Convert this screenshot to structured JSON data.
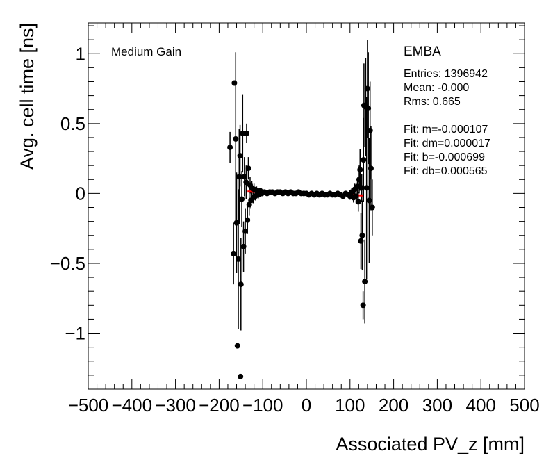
{
  "chart_data": {
    "type": "scatter",
    "title": "",
    "xlabel": "Associated PV_z [mm]",
    "ylabel": "Avg. cell time [ns]",
    "xlim": [
      -500,
      500
    ],
    "ylim": [
      -1.4,
      1.22
    ],
    "x_ticks": [
      -500,
      -400,
      -300,
      -200,
      -100,
      0,
      100,
      200,
      300,
      400,
      500
    ],
    "x_tick_labels": [
      "−500",
      "−400",
      "−300",
      "−200",
      "−100",
      "0",
      "100",
      "200",
      "300",
      "400",
      "500"
    ],
    "y_ticks": [
      -1,
      -0.5,
      0,
      0.5,
      1
    ],
    "y_tick_labels": [
      "−1",
      "−0.5",
      "0",
      "0.5",
      "1"
    ],
    "grid": false,
    "gain_label": "Medium Gain",
    "stats": {
      "title": "EMBA",
      "lines": [
        "Entries: 1396942",
        "Mean: -0.000",
        "Rms: 0.665",
        "",
        "Fit: m=-0.000107",
        "Fit: dm=0.000017",
        "Fit: b=-0.000699",
        "Fit: db=0.000565"
      ]
    },
    "series": [
      {
        "points": [
          {
            "x": -175,
            "y": 0.33,
            "err": 0.11
          },
          {
            "x": -167,
            "y": -0.43,
            "err": 0.22
          },
          {
            "x": -165,
            "y": 0.79,
            "err": 0.0
          },
          {
            "x": -162,
            "y": 0.39,
            "err": 0.62
          },
          {
            "x": -160,
            "y": -0.21,
            "err": 0.36
          },
          {
            "x": -158,
            "y": -1.09,
            "err": 0.0
          },
          {
            "x": -156,
            "y": -0.47,
            "err": 0.5
          },
          {
            "x": -154,
            "y": 0.12,
            "err": 0.34
          },
          {
            "x": -152,
            "y": 0.27,
            "err": 0.22
          },
          {
            "x": -151,
            "y": -1.31,
            "err": 0.0
          },
          {
            "x": -150,
            "y": -0.65,
            "err": 0.33
          },
          {
            "x": -148,
            "y": -0.04,
            "err": 0.2
          },
          {
            "x": -146,
            "y": 0.43,
            "err": 0.28
          },
          {
            "x": -144,
            "y": -0.38,
            "err": 0.18
          },
          {
            "x": -142,
            "y": 0.12,
            "err": 0.14
          },
          {
            "x": -140,
            "y": -0.27,
            "err": 0.16
          },
          {
            "x": -138,
            "y": 0.08,
            "err": 0.12
          },
          {
            "x": -137,
            "y": 0.43,
            "err": 0.07
          },
          {
            "x": -135,
            "y": -0.19,
            "err": 0.1
          },
          {
            "x": -133,
            "y": 0.18,
            "err": 0.08
          },
          {
            "x": -131,
            "y": -0.08,
            "err": 0.08
          },
          {
            "x": -129,
            "y": 0.06,
            "err": 0.06
          },
          {
            "x": -127,
            "y": -0.05,
            "err": 0.06
          },
          {
            "x": -125,
            "y": 0.04,
            "err": 0.05
          },
          {
            "x": -122,
            "y": -0.03,
            "err": 0.04
          },
          {
            "x": -120,
            "y": 0.03,
            "err": 0.04
          },
          {
            "x": -117,
            "y": -0.02,
            "err": 0.03
          },
          {
            "x": -114,
            "y": 0.02,
            "err": 0.03
          },
          {
            "x": -110,
            "y": -0.01,
            "err": 0.025
          },
          {
            "x": -106,
            "y": 0.02,
            "err": 0.02
          },
          {
            "x": -102,
            "y": 0.0,
            "err": 0.02
          },
          {
            "x": -96,
            "y": 0.01,
            "err": 0.015
          },
          {
            "x": -90,
            "y": 0.0,
            "err": 0.012
          },
          {
            "x": -84,
            "y": 0.01,
            "err": 0.012
          },
          {
            "x": -78,
            "y": 0.01,
            "err": 0.01
          },
          {
            "x": -72,
            "y": 0.0,
            "err": 0.01
          },
          {
            "x": -66,
            "y": 0.01,
            "err": 0.01
          },
          {
            "x": -60,
            "y": 0.01,
            "err": 0.008
          },
          {
            "x": -54,
            "y": 0.0,
            "err": 0.008
          },
          {
            "x": -48,
            "y": 0.01,
            "err": 0.008
          },
          {
            "x": -42,
            "y": 0.0,
            "err": 0.008
          },
          {
            "x": -36,
            "y": 0.01,
            "err": 0.008
          },
          {
            "x": -30,
            "y": 0.0,
            "err": 0.008
          },
          {
            "x": -24,
            "y": 0.0,
            "err": 0.008
          },
          {
            "x": -18,
            "y": 0.01,
            "err": 0.008
          },
          {
            "x": -12,
            "y": 0.0,
            "err": 0.008
          },
          {
            "x": -6,
            "y": 0.0,
            "err": 0.008
          },
          {
            "x": 0,
            "y": 0.0,
            "err": 0.008
          },
          {
            "x": 6,
            "y": -0.01,
            "err": 0.008
          },
          {
            "x": 12,
            "y": 0.0,
            "err": 0.008
          },
          {
            "x": 18,
            "y": -0.01,
            "err": 0.008
          },
          {
            "x": 24,
            "y": 0.0,
            "err": 0.008
          },
          {
            "x": 30,
            "y": -0.01,
            "err": 0.008
          },
          {
            "x": 36,
            "y": 0.0,
            "err": 0.008
          },
          {
            "x": 42,
            "y": -0.01,
            "err": 0.008
          },
          {
            "x": 48,
            "y": -0.01,
            "err": 0.008
          },
          {
            "x": 54,
            "y": 0.0,
            "err": 0.008
          },
          {
            "x": 60,
            "y": -0.01,
            "err": 0.01
          },
          {
            "x": 66,
            "y": -0.01,
            "err": 0.01
          },
          {
            "x": 72,
            "y": 0.0,
            "err": 0.01
          },
          {
            "x": 78,
            "y": -0.01,
            "err": 0.012
          },
          {
            "x": 84,
            "y": -0.02,
            "err": 0.012
          },
          {
            "x": 90,
            "y": 0.0,
            "err": 0.015
          },
          {
            "x": 96,
            "y": -0.01,
            "err": 0.02
          },
          {
            "x": 100,
            "y": -0.02,
            "err": 0.025
          },
          {
            "x": 104,
            "y": 0.01,
            "err": 0.03
          },
          {
            "x": 108,
            "y": -0.03,
            "err": 0.035
          },
          {
            "x": 111,
            "y": 0.03,
            "err": 0.04
          },
          {
            "x": 114,
            "y": -0.02,
            "err": 0.05
          },
          {
            "x": 117,
            "y": 0.05,
            "err": 0.06
          },
          {
            "x": 119,
            "y": -0.06,
            "err": 0.07
          },
          {
            "x": 121,
            "y": 0.1,
            "err": 0.1
          },
          {
            "x": 123,
            "y": 0.17,
            "err": 0.15
          },
          {
            "x": 125,
            "y": -0.34,
            "err": 0.2
          },
          {
            "x": 127,
            "y": 0.04,
            "err": 0.1
          },
          {
            "x": 128,
            "y": -0.3,
            "err": 0.25
          },
          {
            "x": 130,
            "y": -0.8,
            "err": 0.1
          },
          {
            "x": 131,
            "y": 0.24,
            "err": 0.3
          },
          {
            "x": 132,
            "y": 0.63,
            "err": 0.3
          },
          {
            "x": 134,
            "y": -0.63,
            "err": 0.3
          },
          {
            "x": 136,
            "y": 0.62,
            "err": 0.35
          },
          {
            "x": 138,
            "y": 0.04,
            "err": 0.65
          },
          {
            "x": 140,
            "y": 0.75,
            "err": 0.35
          },
          {
            "x": 142,
            "y": 0.61,
            "err": 0.4
          },
          {
            "x": 144,
            "y": -0.05,
            "err": 0.45
          },
          {
            "x": 146,
            "y": 0.45,
            "err": 0.35
          },
          {
            "x": 148,
            "y": 0.18,
            "err": 0.3
          },
          {
            "x": 151,
            "y": -0.1,
            "err": 0.2
          }
        ]
      }
    ],
    "fit": {
      "m": -0.000107,
      "b": -0.000699,
      "x_range": [
        -135,
        130
      ],
      "color": "#ff0000"
    }
  }
}
